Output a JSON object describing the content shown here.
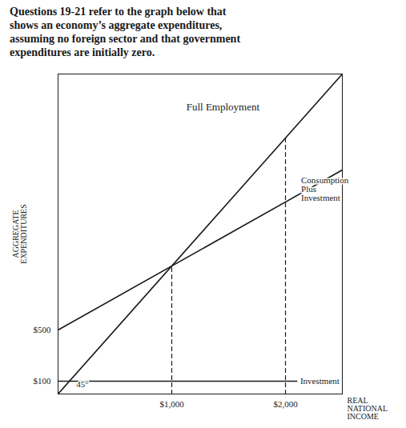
{
  "chart_data": {
    "type": "line",
    "title": "Questions 19-21 refer to the graph below that\nshows an economy’s aggregate expenditures,\nassuming no foreign sector and that government\nexpenditures are initially zero.",
    "xlabel": "REAL\nNATIONAL\nINCOME",
    "ylabel": "AGGREGATE\nEXPENDITURES",
    "xlim": [
      0,
      2500
    ],
    "ylim": [
      0,
      2500
    ],
    "xticks": [
      {
        "value": 1000,
        "label": "$1,000"
      },
      {
        "value": 2000,
        "label": "$2,000"
      }
    ],
    "yticks": [
      {
        "value": 100,
        "label": "$100"
      },
      {
        "value": 500,
        "label": "$500"
      }
    ],
    "grid": false,
    "series": [
      {
        "x": [
          0,
          2500
        ],
        "values": [
          0,
          2500
        ],
        "color": "#1a1a1a",
        "line_style": "solid"
      },
      {
        "x": [
          0,
          2500
        ],
        "values": [
          500,
          1750
        ],
        "color": "#1a1a1a",
        "line_style": "solid"
      },
      {
        "x": [
          0,
          2100
        ],
        "values": [
          100,
          100
        ],
        "color": "#1a1a1a",
        "line_style": "solid"
      },
      {
        "x": [
          1000,
          1000
        ],
        "values": [
          0,
          1000
        ],
        "color": "#1a1a1a",
        "line_style": "dashed"
      },
      {
        "x": [
          2000,
          2000
        ],
        "values": [
          0,
          2000
        ],
        "color": "#1a1a1a",
        "line_style": "dashed"
      }
    ],
    "annotations": [
      {
        "text": "Full Employment",
        "x": 1450,
        "y": 2275
      },
      {
        "text": "Consumption\nPlus\nInvestment",
        "x": 2137.5,
        "y": 1600
      },
      {
        "text": "Investment",
        "x": 2130,
        "y": 100
      },
      {
        "text": "45°",
        "x": 160,
        "y": 55
      }
    ]
  }
}
